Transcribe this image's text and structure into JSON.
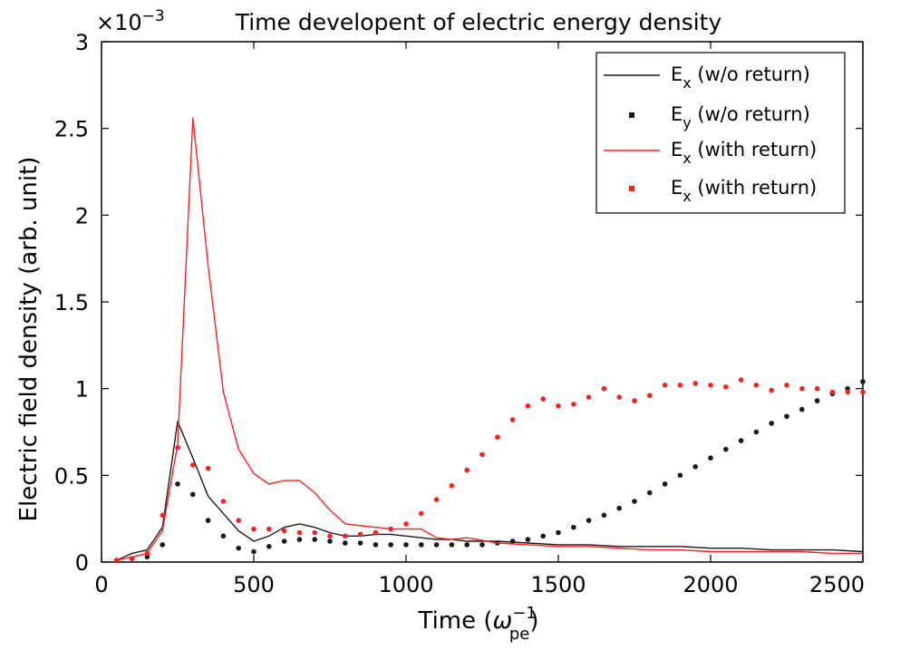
{
  "chart_data": {
    "type": "line",
    "title": "Time developent of electric energy density",
    "xlabel": "Time (ω_pe^-1)",
    "xlabel_main": "Time (",
    "xlabel_symbol": "ω",
    "xlabel_sub": "pe",
    "xlabel_sup": "−1",
    "xlabel_close": ")",
    "ylabel": "Electric field density (arb. unit)",
    "y_scale_label": "×10",
    "y_scale_exp": "−3",
    "xlim": [
      0,
      2500
    ],
    "ylim": [
      0,
      3
    ],
    "x_ticks": [
      "0",
      "500",
      "1000",
      "1500",
      "2000",
      "2500"
    ],
    "y_ticks": [
      "0",
      "0.5",
      "1",
      "1.5",
      "2",
      "2.5",
      "3"
    ],
    "grid": false,
    "legend_position": "top-right",
    "colors": {
      "black": "#1a1a1a",
      "red": "#ff2020"
    },
    "series": [
      {
        "name": "E_x (w/o return)",
        "legend_main": "E",
        "legend_sub": "x",
        "legend_rest": " (w/o return)",
        "style": "line",
        "color": "#1a1a1a",
        "x": [
          50,
          100,
          150,
          200,
          250,
          300,
          350,
          400,
          450,
          500,
          550,
          600,
          650,
          700,
          750,
          800,
          850,
          900,
          950,
          1000,
          1050,
          1100,
          1150,
          1200,
          1300,
          1400,
          1500,
          1600,
          1700,
          1800,
          1900,
          2000,
          2100,
          2200,
          2300,
          2400,
          2500
        ],
        "y": [
          0.01,
          0.05,
          0.07,
          0.2,
          0.81,
          0.6,
          0.38,
          0.28,
          0.18,
          0.12,
          0.15,
          0.2,
          0.22,
          0.2,
          0.17,
          0.15,
          0.15,
          0.16,
          0.16,
          0.15,
          0.14,
          0.13,
          0.13,
          0.12,
          0.12,
          0.11,
          0.1,
          0.1,
          0.09,
          0.09,
          0.09,
          0.08,
          0.08,
          0.07,
          0.07,
          0.07,
          0.06
        ]
      },
      {
        "name": "E_y (w/o return)",
        "legend_main": "E",
        "legend_sub": "y",
        "legend_rest": " (w/o return)",
        "style": "dots",
        "color": "#1a1a1a",
        "x": [
          50,
          100,
          150,
          200,
          250,
          300,
          350,
          400,
          450,
          500,
          550,
          600,
          650,
          700,
          750,
          800,
          850,
          900,
          950,
          1000,
          1050,
          1100,
          1150,
          1200,
          1250,
          1300,
          1350,
          1400,
          1450,
          1500,
          1550,
          1600,
          1650,
          1700,
          1750,
          1800,
          1850,
          1900,
          1950,
          2000,
          2050,
          2100,
          2150,
          2200,
          2250,
          2300,
          2350,
          2400,
          2450,
          2500
        ],
        "y": [
          0.01,
          0.02,
          0.03,
          0.1,
          0.45,
          0.39,
          0.24,
          0.15,
          0.08,
          0.06,
          0.09,
          0.12,
          0.13,
          0.13,
          0.12,
          0.11,
          0.11,
          0.1,
          0.1,
          0.1,
          0.1,
          0.1,
          0.1,
          0.1,
          0.1,
          0.11,
          0.12,
          0.13,
          0.15,
          0.17,
          0.2,
          0.24,
          0.27,
          0.31,
          0.35,
          0.4,
          0.45,
          0.5,
          0.55,
          0.6,
          0.65,
          0.7,
          0.75,
          0.8,
          0.84,
          0.88,
          0.93,
          0.97,
          1.0,
          1.04
        ]
      },
      {
        "name": "E_x (with return)",
        "legend_main": "E",
        "legend_sub": "x",
        "legend_rest": " (with return)",
        "style": "line",
        "color": "#ff2020",
        "x": [
          50,
          100,
          150,
          200,
          250,
          300,
          350,
          400,
          450,
          500,
          550,
          600,
          650,
          700,
          750,
          800,
          850,
          900,
          950,
          1000,
          1050,
          1100,
          1150,
          1200,
          1300,
          1400,
          1500,
          1600,
          1700,
          1800,
          1900,
          2000,
          2100,
          2200,
          2300,
          2400,
          2500
        ],
        "y": [
          0.01,
          0.03,
          0.05,
          0.18,
          0.68,
          2.56,
          1.71,
          0.98,
          0.65,
          0.51,
          0.45,
          0.47,
          0.47,
          0.4,
          0.3,
          0.22,
          0.21,
          0.2,
          0.19,
          0.19,
          0.19,
          0.14,
          0.13,
          0.14,
          0.11,
          0.1,
          0.09,
          0.09,
          0.08,
          0.07,
          0.07,
          0.06,
          0.06,
          0.06,
          0.06,
          0.05,
          0.05
        ]
      },
      {
        "name": "E_x (with return)",
        "legend_main": "E",
        "legend_sub": "x",
        "legend_rest": " (with return)",
        "style": "dots",
        "color": "#ff2020",
        "x": [
          50,
          100,
          150,
          200,
          250,
          300,
          350,
          400,
          450,
          500,
          550,
          600,
          650,
          700,
          750,
          800,
          850,
          900,
          950,
          1000,
          1050,
          1100,
          1150,
          1200,
          1250,
          1300,
          1350,
          1400,
          1450,
          1500,
          1550,
          1600,
          1650,
          1700,
          1750,
          1800,
          1850,
          1900,
          1950,
          2000,
          2050,
          2100,
          2150,
          2200,
          2250,
          2300,
          2350,
          2400,
          2450,
          2500
        ],
        "y": [
          0.01,
          0.02,
          0.05,
          0.27,
          0.66,
          0.56,
          0.54,
          0.35,
          0.24,
          0.19,
          0.19,
          0.18,
          0.17,
          0.17,
          0.15,
          0.15,
          0.16,
          0.17,
          0.19,
          0.22,
          0.28,
          0.36,
          0.44,
          0.53,
          0.62,
          0.72,
          0.82,
          0.9,
          0.94,
          0.9,
          0.91,
          0.95,
          1.0,
          0.95,
          0.93,
          0.96,
          1.02,
          1.02,
          1.03,
          1.02,
          1.01,
          1.05,
          1.02,
          0.99,
          1.02,
          1.0,
          1.0,
          0.98,
          0.98,
          0.98
        ]
      }
    ]
  }
}
